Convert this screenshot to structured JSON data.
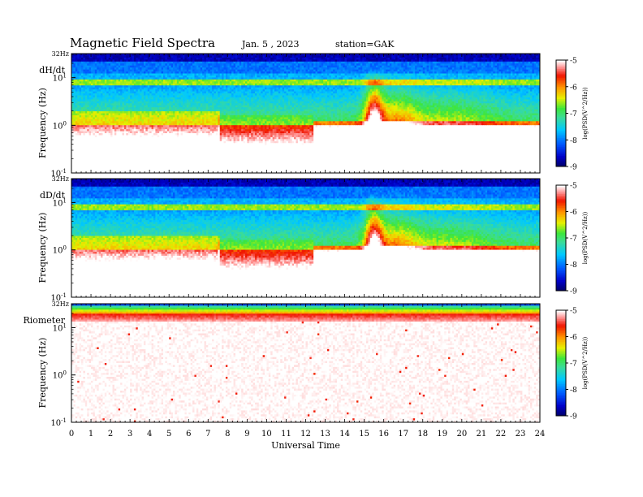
{
  "header": {
    "title": "Magnetic  Field  Spectra",
    "date": "Jan.  5  ,  2023",
    "station": "station=GAK"
  },
  "chart_data": {
    "type": "heatmap",
    "xlabel": "Universal Time",
    "xlim": [
      0,
      24
    ],
    "x_ticks": [
      "0",
      "1",
      "2",
      "3",
      "4",
      "5",
      "6",
      "7",
      "8",
      "9",
      "10",
      "11",
      "12",
      "13",
      "14",
      "15",
      "16",
      "17",
      "18",
      "19",
      "20",
      "21",
      "22",
      "23",
      "24"
    ],
    "panels": [
      {
        "label": "dH/dt",
        "ylabel": "Frequency  (Hz)",
        "y_top_label": "32Hz",
        "y_ticks": [
          {
            "base": "10",
            "exp": "1",
            "value": 10
          },
          {
            "base": "10",
            "exp": "0",
            "value": 1
          },
          {
            "base": "10",
            "exp": "-1",
            "value": 0.1
          }
        ],
        "colorbar_label": "log(PSD(V^2/Hz))",
        "colorbar_ticks": [
          "-5",
          "-6",
          "-7",
          "-8",
          "-9"
        ],
        "crange": [
          -9,
          -5
        ],
        "profile": "magnetic",
        "x_quiet_end": 12.4,
        "peak_hour": 15.5
      },
      {
        "label": "dD/dt",
        "ylabel": "Frequency  (Hz)",
        "y_top_label": "32Hz",
        "y_ticks": [
          {
            "base": "10",
            "exp": "1",
            "value": 10
          },
          {
            "base": "10",
            "exp": "0",
            "value": 1
          },
          {
            "base": "10",
            "exp": "-1",
            "value": 0.1
          }
        ],
        "colorbar_label": "log(PSD(V^2/Hz))",
        "colorbar_ticks": [
          "-5",
          "-6",
          "-7",
          "-8",
          "-9"
        ],
        "crange": [
          -9,
          -5
        ],
        "profile": "magnetic",
        "x_quiet_end": 12.4,
        "peak_hour": 15.5
      },
      {
        "label": "Riometer",
        "ylabel": "Frequency  (Hz)",
        "y_top_label": "32Hz",
        "y_ticks": [
          {
            "base": "10",
            "exp": "1",
            "value": 10
          },
          {
            "base": "10",
            "exp": "0",
            "value": 1
          },
          {
            "base": "10",
            "exp": "-1",
            "value": 0.1
          }
        ],
        "colorbar_label": "log(PSD(V^2/Hz))",
        "colorbar_ticks": [
          "-5",
          "-6",
          "-7",
          "-8",
          "-9"
        ],
        "crange": [
          -9,
          -5
        ],
        "profile": "riometer"
      }
    ]
  }
}
